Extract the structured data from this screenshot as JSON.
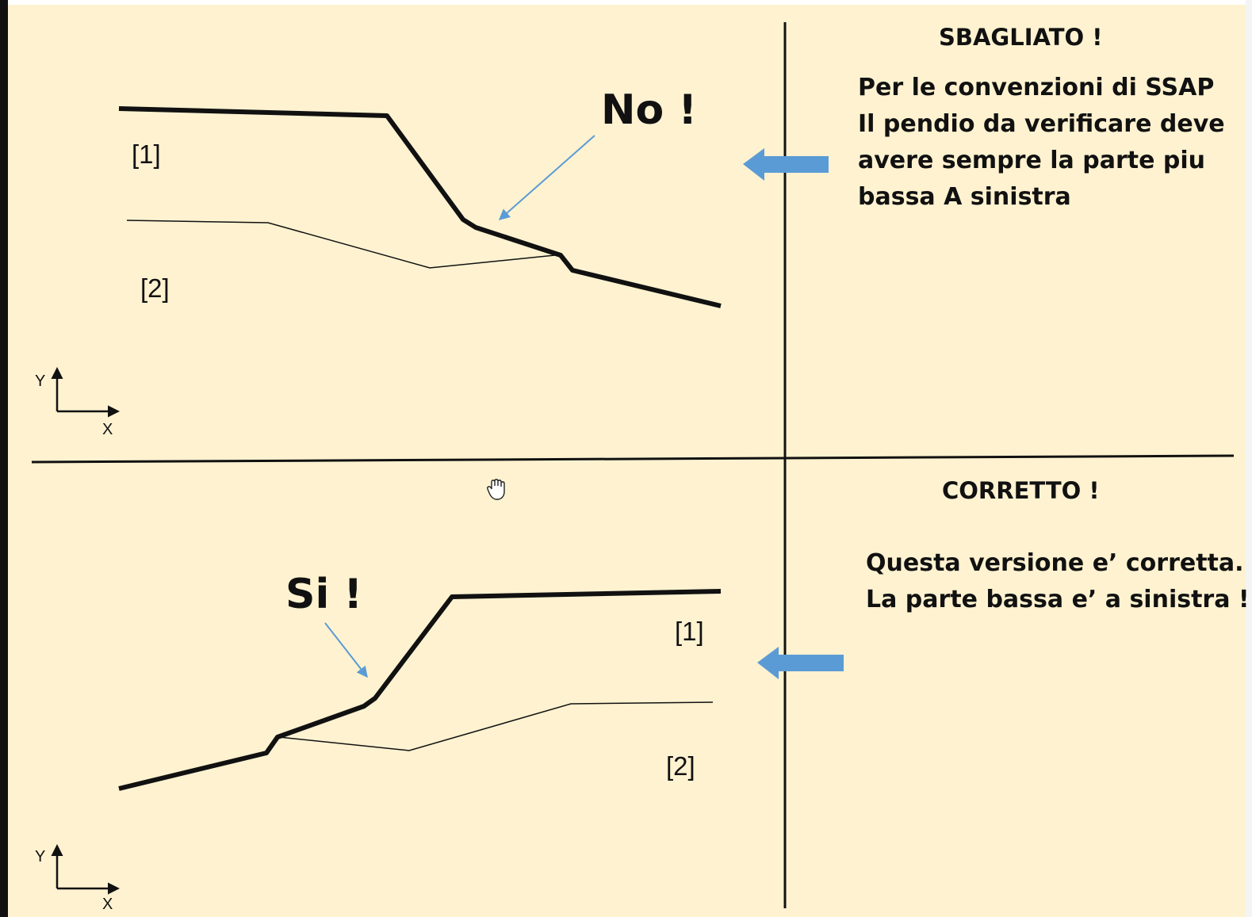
{
  "top_panel": {
    "heading": "SBAGLIATO !",
    "description_lines": [
      "Per le convenzioni di SSAP",
      "Il pendio da verificare deve",
      "avere  sempre la parte piu",
      "bassa A sinistra"
    ],
    "callout": "No !",
    "layer_1": "[1]",
    "layer_2": "[2]",
    "axis_y": "Y",
    "axis_x": "X"
  },
  "bottom_panel": {
    "heading": "CORRETTO !",
    "description_lines": [
      "Questa versione e’ corretta.",
      "La parte bassa e’ a sinistra !!"
    ],
    "callout": "Si !",
    "layer_1": "[1]",
    "layer_2": "[2]",
    "axis_y": "Y",
    "axis_x": "X"
  },
  "colors": {
    "background": "#fef2d0",
    "arrow_blue": "#5b9bd5",
    "line": "#111111"
  },
  "icons": {
    "cursor": "hand-cursor-icon",
    "pointer_arrows": "blue-arrow-left-icon"
  }
}
